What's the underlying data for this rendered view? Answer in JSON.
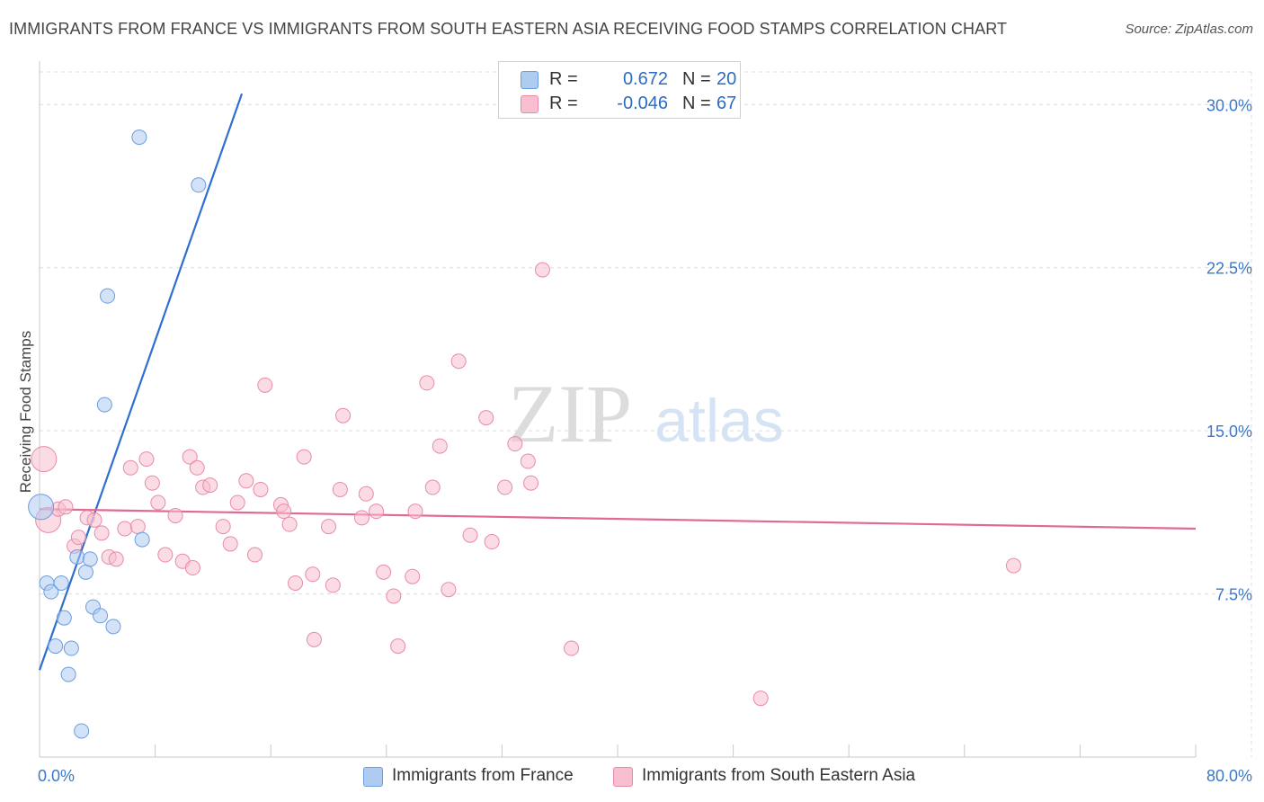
{
  "title": "IMMIGRANTS FROM FRANCE VS IMMIGRANTS FROM SOUTH EASTERN ASIA RECEIVING FOOD STAMPS CORRELATION CHART",
  "source": "Source: ZipAtlas.com",
  "watermark": {
    "zip": "ZIP",
    "atlas": "atlas"
  },
  "colors": {
    "blue_fill": "#aecbf0",
    "blue_stroke": "#6a9ee0",
    "blue_line": "#2f6fcf",
    "pink_fill": "#f7bfd0",
    "pink_stroke": "#e98aa8",
    "pink_line": "#e06a94",
    "axis_text": "#3c78c8",
    "grid": "#dddddd"
  },
  "legend": {
    "rows": [
      {
        "series": "blue",
        "r_label": "R =",
        "r_value": "0.672",
        "n_label": "N =",
        "n_value": "20"
      },
      {
        "series": "pink",
        "r_label": "R =",
        "r_value": "-0.046",
        "n_label": "N =",
        "n_value": "67"
      }
    ]
  },
  "chart_data": {
    "type": "scatter",
    "title": "IMMIGRANTS FROM FRANCE VS IMMIGRANTS FROM SOUTH EASTERN ASIA RECEIVING FOOD STAMPS CORRELATION CHART",
    "xlabel": "",
    "ylabel": "Receiving Food Stamps",
    "xlim": [
      0,
      80
    ],
    "ylim": [
      0,
      31.5
    ],
    "x_tick_labels": [
      {
        "value": 0,
        "label": "0.0%"
      },
      {
        "value": 80,
        "label": "80.0%"
      }
    ],
    "y_ticks": [
      {
        "value": 7.5,
        "label": "7.5%"
      },
      {
        "value": 15.0,
        "label": "15.0%"
      },
      {
        "value": 22.5,
        "label": "22.5%"
      },
      {
        "value": 30.0,
        "label": "30.0%"
      }
    ],
    "x_minor_ticks": [
      8,
      16,
      24,
      32,
      40,
      48,
      56,
      64,
      72,
      80
    ],
    "series": [
      {
        "name": "Immigrants from France",
        "color": "blue",
        "trend": {
          "x": [
            0.0,
            14.0
          ],
          "y": [
            4.0,
            30.5
          ]
        },
        "points": [
          {
            "x": 0.1,
            "y": 11.5,
            "big": true
          },
          {
            "x": 0.5,
            "y": 8.0
          },
          {
            "x": 0.8,
            "y": 7.6
          },
          {
            "x": 1.1,
            "y": 5.1
          },
          {
            "x": 1.5,
            "y": 8.0
          },
          {
            "x": 1.7,
            "y": 6.4
          },
          {
            "x": 2.0,
            "y": 3.8
          },
          {
            "x": 2.2,
            "y": 5.0
          },
          {
            "x": 2.6,
            "y": 9.2
          },
          {
            "x": 2.9,
            "y": 1.2
          },
          {
            "x": 3.2,
            "y": 8.5
          },
          {
            "x": 3.5,
            "y": 9.1
          },
          {
            "x": 3.7,
            "y": 6.9
          },
          {
            "x": 4.2,
            "y": 6.5
          },
          {
            "x": 4.5,
            "y": 16.2
          },
          {
            "x": 4.7,
            "y": 21.2
          },
          {
            "x": 5.1,
            "y": 6.0
          },
          {
            "x": 7.1,
            "y": 10.0
          },
          {
            "x": 6.9,
            "y": 28.5
          },
          {
            "x": 11.0,
            "y": 26.3
          }
        ]
      },
      {
        "name": "Immigrants from South Eastern Asia",
        "color": "pink",
        "trend": {
          "x": [
            0.0,
            80.0
          ],
          "y": [
            11.4,
            10.5
          ]
        },
        "points": [
          {
            "x": 0.3,
            "y": 13.7,
            "big": true
          },
          {
            "x": 0.6,
            "y": 10.9,
            "big": true
          },
          {
            "x": 1.3,
            "y": 11.4
          },
          {
            "x": 1.8,
            "y": 11.5
          },
          {
            "x": 2.4,
            "y": 9.7
          },
          {
            "x": 2.7,
            "y": 10.1
          },
          {
            "x": 3.3,
            "y": 11.0
          },
          {
            "x": 3.8,
            "y": 10.9
          },
          {
            "x": 4.3,
            "y": 10.3
          },
          {
            "x": 4.8,
            "y": 9.2
          },
          {
            "x": 5.3,
            "y": 9.1
          },
          {
            "x": 5.9,
            "y": 10.5
          },
          {
            "x": 6.3,
            "y": 13.3
          },
          {
            "x": 6.8,
            "y": 10.6
          },
          {
            "x": 7.4,
            "y": 13.7
          },
          {
            "x": 7.8,
            "y": 12.6
          },
          {
            "x": 8.2,
            "y": 11.7
          },
          {
            "x": 8.7,
            "y": 9.3
          },
          {
            "x": 9.4,
            "y": 11.1
          },
          {
            "x": 9.9,
            "y": 9.0
          },
          {
            "x": 10.4,
            "y": 13.8
          },
          {
            "x": 10.6,
            "y": 8.7
          },
          {
            "x": 10.9,
            "y": 13.3
          },
          {
            "x": 11.3,
            "y": 12.4
          },
          {
            "x": 11.8,
            "y": 12.5
          },
          {
            "x": 12.7,
            "y": 10.6
          },
          {
            "x": 13.2,
            "y": 9.8
          },
          {
            "x": 13.7,
            "y": 11.7
          },
          {
            "x": 14.3,
            "y": 12.7
          },
          {
            "x": 14.9,
            "y": 9.3
          },
          {
            "x": 15.3,
            "y": 12.3
          },
          {
            "x": 15.6,
            "y": 17.1
          },
          {
            "x": 16.7,
            "y": 11.6
          },
          {
            "x": 16.9,
            "y": 11.3
          },
          {
            "x": 17.3,
            "y": 10.7
          },
          {
            "x": 17.7,
            "y": 8.0
          },
          {
            "x": 18.3,
            "y": 13.8
          },
          {
            "x": 18.9,
            "y": 8.4
          },
          {
            "x": 19.0,
            "y": 5.4
          },
          {
            "x": 20.0,
            "y": 10.6
          },
          {
            "x": 20.3,
            "y": 7.9
          },
          {
            "x": 20.8,
            "y": 12.3
          },
          {
            "x": 21.0,
            "y": 15.7
          },
          {
            "x": 22.3,
            "y": 11.0
          },
          {
            "x": 22.6,
            "y": 12.1
          },
          {
            "x": 23.3,
            "y": 11.3
          },
          {
            "x": 23.8,
            "y": 8.5
          },
          {
            "x": 24.5,
            "y": 7.4
          },
          {
            "x": 24.8,
            "y": 5.1
          },
          {
            "x": 25.8,
            "y": 8.3
          },
          {
            "x": 26.0,
            "y": 11.3
          },
          {
            "x": 26.8,
            "y": 17.2
          },
          {
            "x": 27.2,
            "y": 12.4
          },
          {
            "x": 27.7,
            "y": 14.3
          },
          {
            "x": 28.3,
            "y": 7.7
          },
          {
            "x": 29.0,
            "y": 18.2
          },
          {
            "x": 29.8,
            "y": 10.2
          },
          {
            "x": 30.9,
            "y": 15.6
          },
          {
            "x": 31.3,
            "y": 9.9
          },
          {
            "x": 32.2,
            "y": 12.4
          },
          {
            "x": 32.9,
            "y": 14.4
          },
          {
            "x": 33.8,
            "y": 13.6
          },
          {
            "x": 34.0,
            "y": 12.6
          },
          {
            "x": 34.8,
            "y": 22.4
          },
          {
            "x": 36.8,
            "y": 5.0
          },
          {
            "x": 49.9,
            "y": 2.7
          },
          {
            "x": 67.4,
            "y": 8.8
          }
        ]
      }
    ],
    "legend_position": "top-center"
  }
}
